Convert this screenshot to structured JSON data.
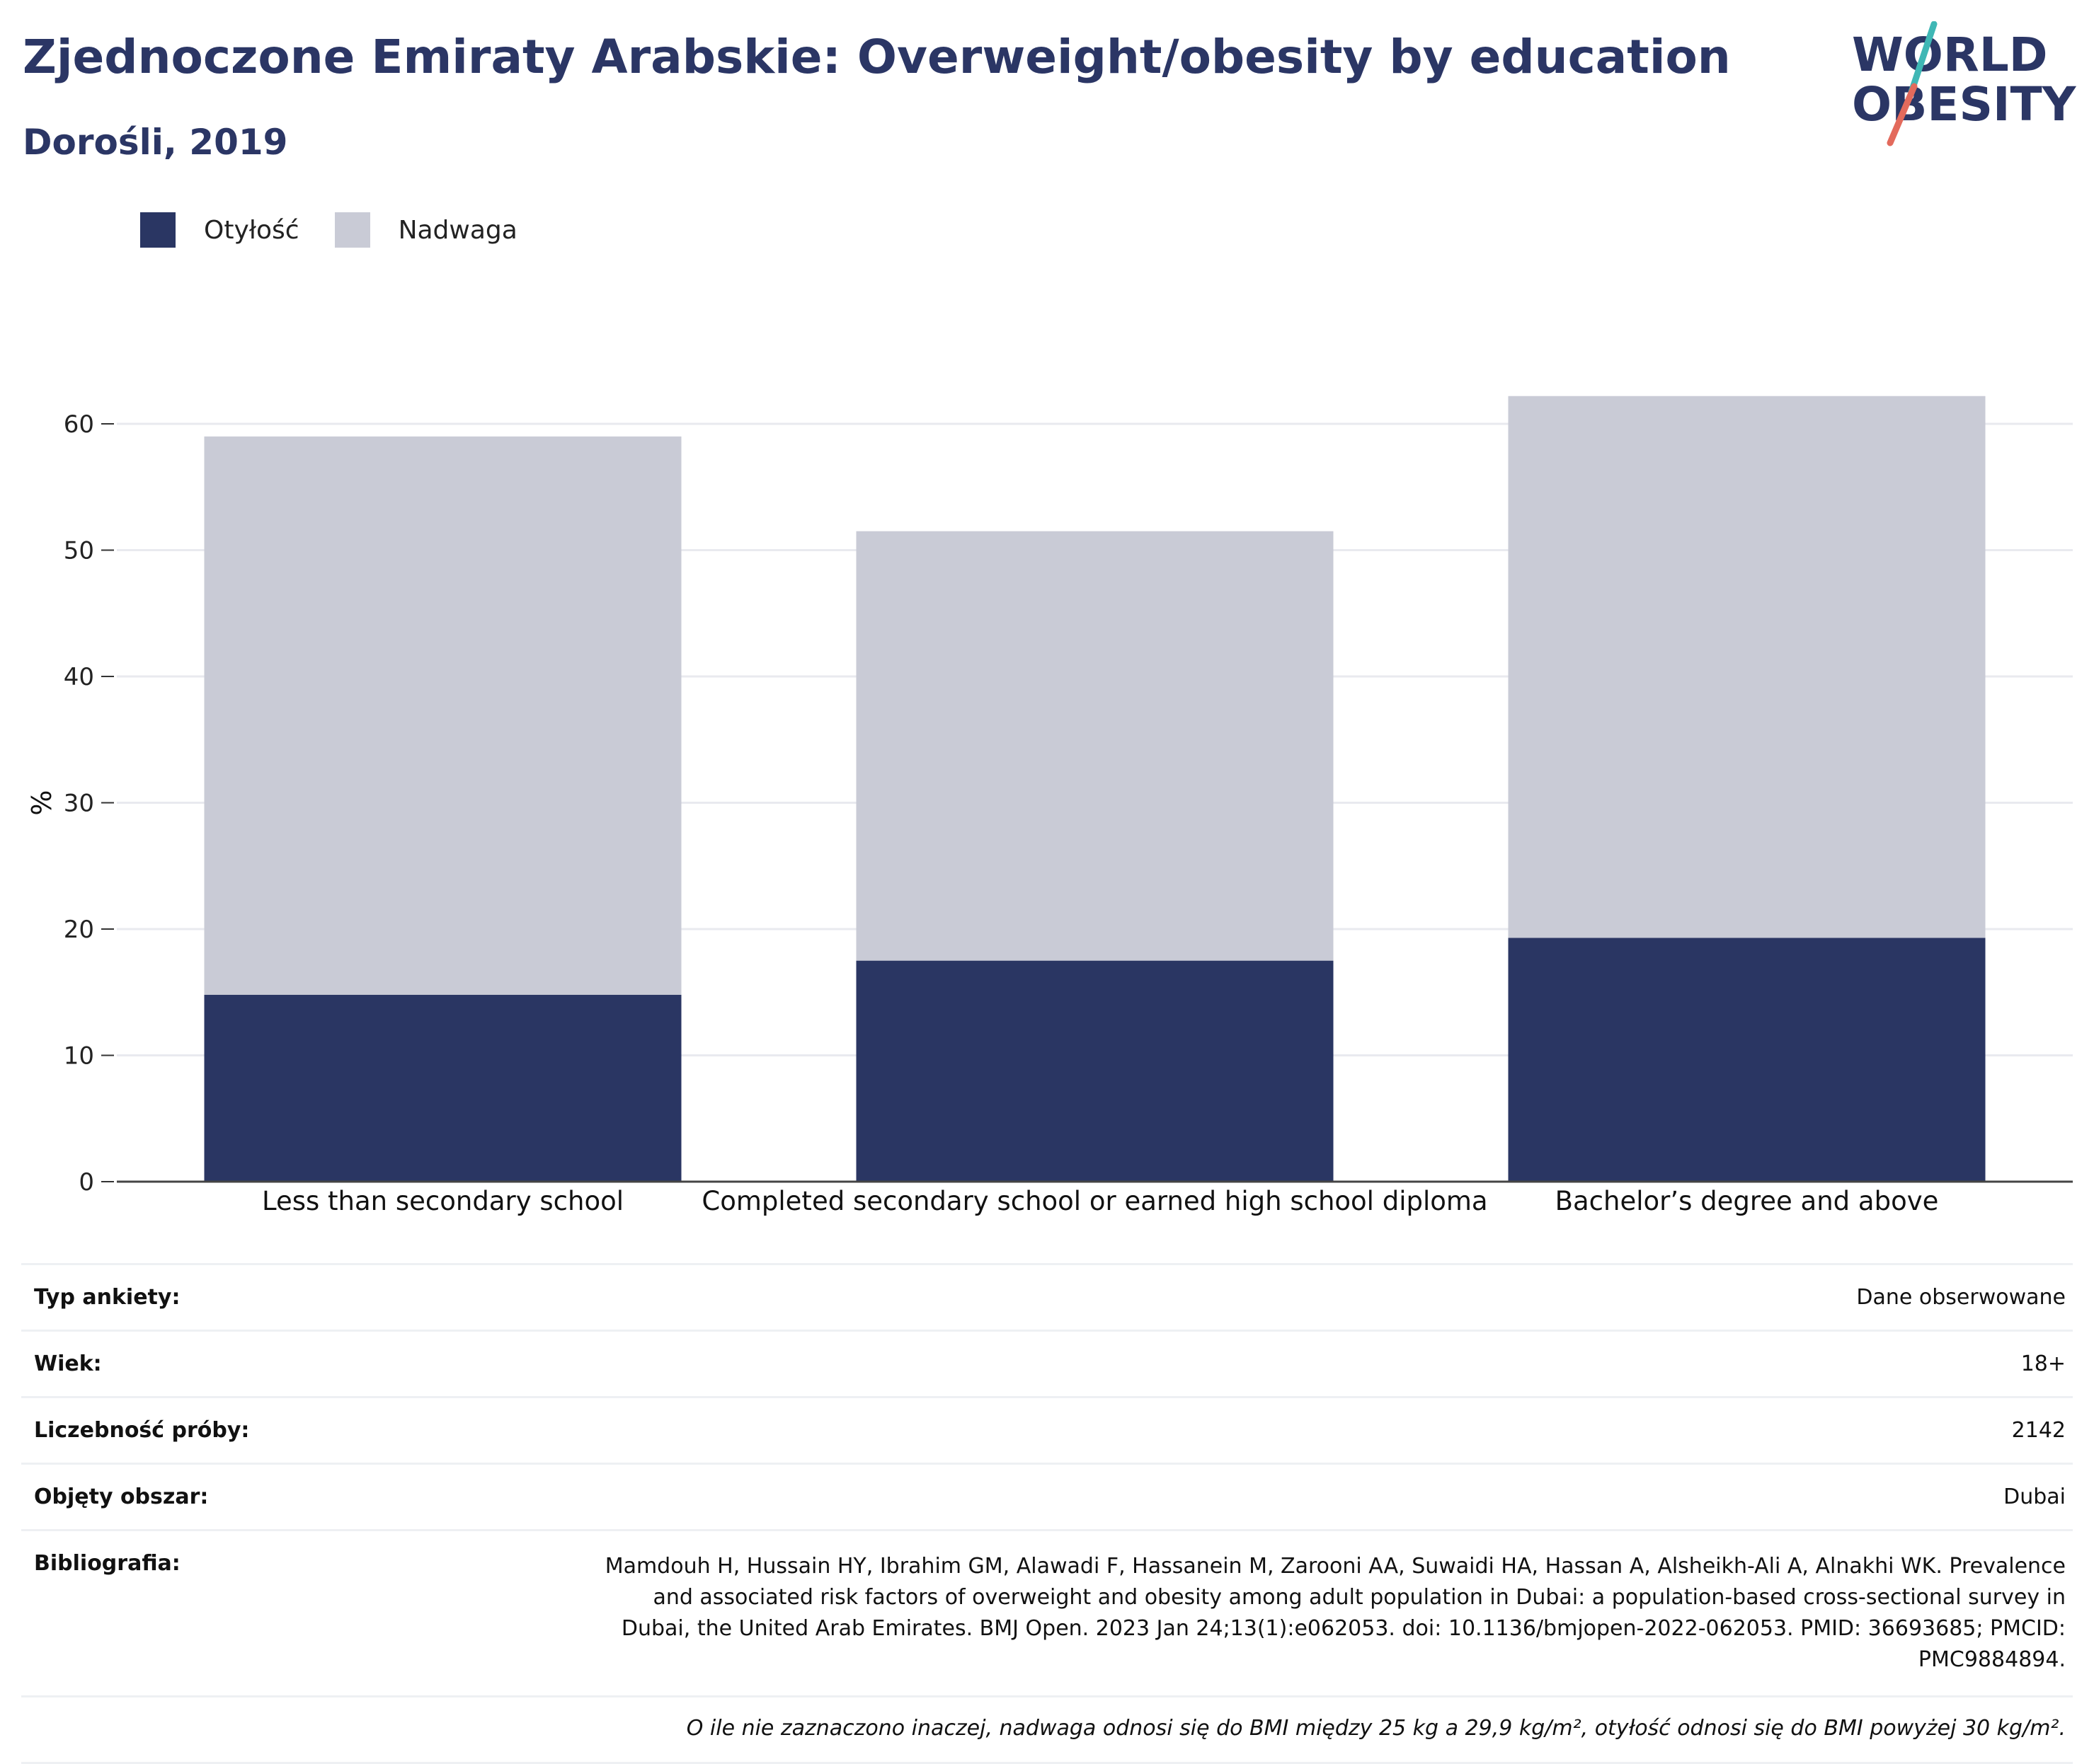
{
  "header": {
    "title": "Zjednoczone Emiraty Arabskie: Overweight/obesity by education",
    "subtitle": "Dorośli, 2019"
  },
  "logo": {
    "line1": "WORLD",
    "line2": "OBESITY",
    "colors": {
      "text": "#2b3665",
      "slash_top": "#3fb7b5",
      "slash_bottom": "#e36a5c"
    }
  },
  "legend": {
    "items": [
      {
        "label": "Otyłość",
        "color": "#2a3663"
      },
      {
        "label": "Nadwaga",
        "color": "#c9cbd6"
      }
    ]
  },
  "chart_data": {
    "type": "bar",
    "stacked": true,
    "title": "Zjednoczone Emiraty Arabskie: Overweight/obesity by education",
    "subtitle": "Dorośli, 2019",
    "ylabel": "%",
    "xlabel": "",
    "ylim": [
      0,
      65
    ],
    "yticks": [
      0,
      10,
      20,
      30,
      40,
      50,
      60
    ],
    "grid": true,
    "legend_position": "top-left",
    "categories": [
      "Less than secondary school",
      "Completed secondary school or earned  high school diploma",
      "Bachelor’s degree and above"
    ],
    "series": [
      {
        "name": "Otyłość",
        "color": "#2a3663",
        "values": [
          14.8,
          17.5,
          19.3
        ]
      },
      {
        "name": "Nadwaga",
        "color": "#c9cbd6",
        "values": [
          44.2,
          34.0,
          42.9
        ]
      }
    ]
  },
  "info": {
    "survey_type": {
      "label": "Typ ankiety:",
      "value": "Dane obserwowane"
    },
    "age": {
      "label": "Wiek:",
      "value": "18+"
    },
    "sample_size": {
      "label": "Liczebność próby:",
      "value": "2142"
    },
    "area": {
      "label": "Objęty obszar:",
      "value": "Dubai"
    },
    "bibliography": {
      "label": "Bibliografia:",
      "value": "Mamdouh H, Hussain HY, Ibrahim GM, Alawadi F, Hassanein M, Zarooni AA, Suwaidi HA, Hassan A, Alsheikh-Ali A, Alnakhi WK. Prevalence and associated risk factors of overweight and obesity among adult population in Dubai: a population-based cross-sectional survey in Dubai, the United Arab Emirates. BMJ Open. 2023 Jan 24;13(1):e062053. doi: 10.1136/bmjopen-2022-062053. PMID: 36693685; PMCID: PMC9884894."
    },
    "note": "O ile nie zaznaczono inaczej, nadwaga odnosi się do BMI między 25 kg a 29,9 kg/m², otyłość odnosi się do BMI powyżej 30 kg/m²."
  }
}
